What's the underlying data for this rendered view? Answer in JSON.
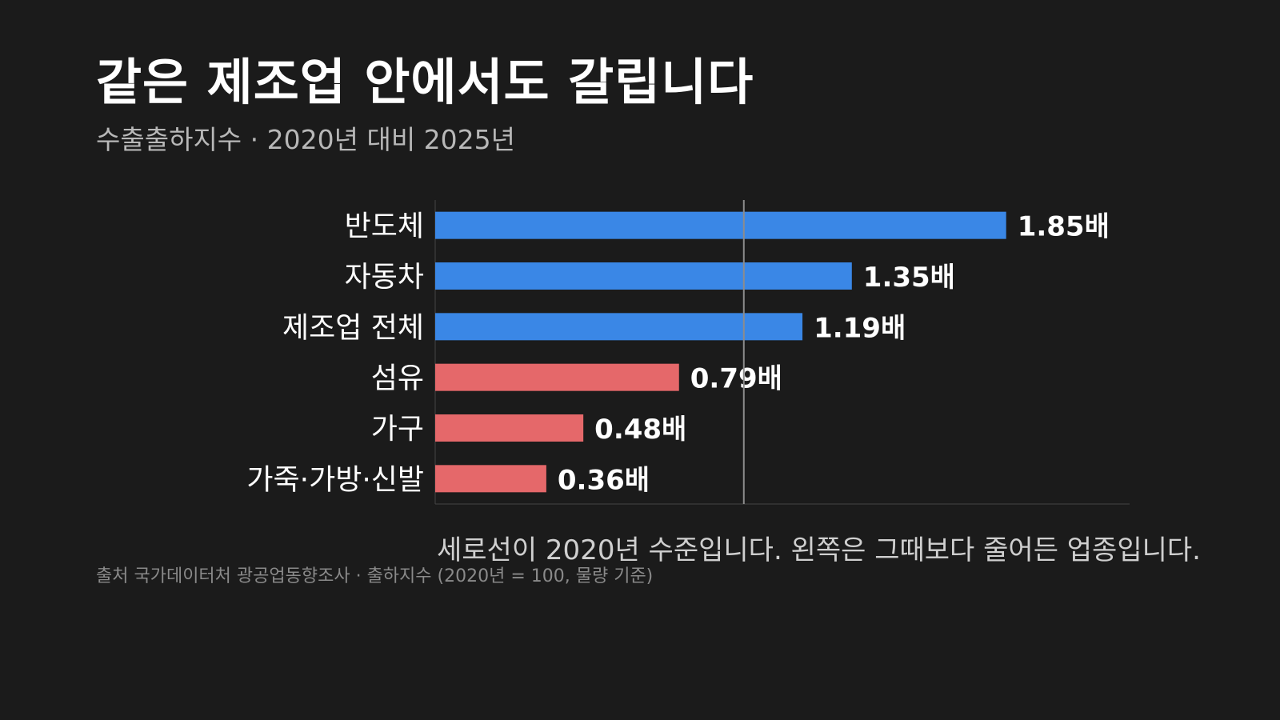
{
  "header": {
    "title": "같은 제조업 안에서도 갈립니다",
    "subtitle": "수출출하지수 · 2020년 대비 2025년"
  },
  "chart_data": {
    "type": "bar",
    "orientation": "horizontal",
    "categories": [
      "반도체",
      "자동차",
      "제조업 전체",
      "섬유",
      "가구",
      "가죽·가방·신발"
    ],
    "values": [
      1.85,
      1.35,
      1.19,
      0.79,
      0.48,
      0.36
    ],
    "value_labels": [
      "1.85배",
      "1.35배",
      "1.19배",
      "0.79배",
      "0.48배",
      "0.36배"
    ],
    "reference_line": 1.0,
    "xlim": [
      0,
      2.25
    ],
    "colors": {
      "above_reference": "#3a87e6",
      "below_reference": "#e5686a",
      "reference_line": "#8c8c8c",
      "axis": "#444444"
    },
    "title": "같은 제조업 안에서도 갈립니다",
    "xlabel": "",
    "ylabel": ""
  },
  "footer": {
    "note": "세로선이 2020년 수준입니다. 왼쪽은 그때보다 줄어든 업종입니다.",
    "source": "출처 국가데이터처 광공업동향조사 · 출하지수 (2020년 = 100, 물량 기준)"
  }
}
